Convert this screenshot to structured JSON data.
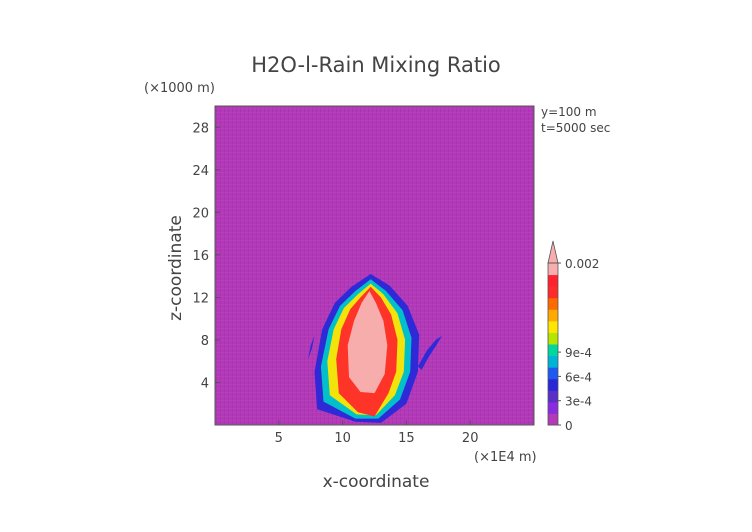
{
  "chart_data": {
    "type": "heatmap",
    "title": "H2O-l-Rain Mixing Ratio",
    "xlabel": "x-coordinate",
    "ylabel": "z-coordinate",
    "x_unit": "(×1E4 m)",
    "y_unit": "(×1000 m)",
    "annotations": [
      "y=100 m",
      "t=5000 sec"
    ],
    "x_ticks": [
      "5",
      "10",
      "15",
      "20"
    ],
    "y_ticks": [
      "4",
      "8",
      "12",
      "16",
      "20",
      "24",
      "28"
    ],
    "xlim": [
      0,
      25
    ],
    "ylim": [
      0,
      30
    ],
    "x_tick_values": [
      5,
      10,
      15,
      20
    ],
    "y_tick_values": [
      4,
      8,
      12,
      16,
      20,
      24,
      28
    ],
    "background_value": 0,
    "background_color": "#b23ab8",
    "colorbar": {
      "labels": [
        "0.002",
        "9e-4",
        "6e-4",
        "3e-4",
        "0"
      ],
      "label_values": [
        0.002,
        0.0009,
        0.0006,
        0.0003,
        0
      ],
      "vmax": 0.002,
      "colors": [
        "#b23ab8",
        "#8a2be2",
        "#5a2fc8",
        "#2828d8",
        "#1e5af0",
        "#00b4d8",
        "#00d7a0",
        "#b4e600",
        "#ffe600",
        "#ffaa00",
        "#ff6a00",
        "#ff2a2a",
        "#ff2030",
        "#f8aeae"
      ]
    },
    "cloud_shapes": [
      {
        "name": "outer",
        "color": "#2828d8",
        "outline": [
          [
            8.0,
            1.5
          ],
          [
            7.8,
            5.0
          ],
          [
            8.4,
            9.0
          ],
          [
            9.4,
            11.5
          ],
          [
            10.7,
            13.0
          ],
          [
            12.2,
            14.2
          ],
          [
            13.7,
            13.1
          ],
          [
            15.1,
            11.2
          ],
          [
            16.0,
            8.5
          ],
          [
            15.9,
            5.0
          ],
          [
            15.0,
            2.0
          ],
          [
            13.0,
            0.2
          ],
          [
            11.0,
            0.3
          ]
        ]
      },
      {
        "name": "cyan",
        "color": "#00c8c8",
        "outline": [
          [
            8.5,
            2.2
          ],
          [
            8.3,
            5.5
          ],
          [
            8.9,
            9.0
          ],
          [
            9.8,
            11.2
          ],
          [
            11.0,
            12.6
          ],
          [
            12.2,
            13.7
          ],
          [
            13.4,
            12.6
          ],
          [
            14.7,
            10.8
          ],
          [
            15.4,
            8.2
          ],
          [
            15.3,
            5.0
          ],
          [
            14.5,
            2.4
          ],
          [
            12.8,
            0.6
          ],
          [
            11.0,
            0.6
          ]
        ]
      },
      {
        "name": "yellow",
        "color": "#ffe600",
        "outline": [
          [
            9.0,
            2.8
          ],
          [
            8.8,
            6.0
          ],
          [
            9.3,
            9.0
          ],
          [
            10.1,
            11.0
          ],
          [
            11.2,
            12.3
          ],
          [
            12.2,
            13.3
          ],
          [
            13.2,
            12.3
          ],
          [
            14.3,
            10.5
          ],
          [
            14.9,
            8.0
          ],
          [
            14.8,
            5.0
          ],
          [
            14.1,
            2.8
          ],
          [
            12.6,
            0.9
          ],
          [
            11.1,
            1.0
          ]
        ]
      },
      {
        "name": "red",
        "color": "#ff2a2a",
        "outline": [
          [
            9.7,
            3.0
          ],
          [
            9.5,
            6.2
          ],
          [
            9.9,
            9.0
          ],
          [
            10.6,
            10.9
          ],
          [
            11.4,
            12.0
          ],
          [
            12.2,
            13.0
          ],
          [
            13.0,
            12.0
          ],
          [
            13.8,
            10.4
          ],
          [
            14.3,
            8.0
          ],
          [
            14.2,
            5.0
          ],
          [
            13.6,
            3.0
          ],
          [
            12.5,
            0.8
          ],
          [
            11.2,
            1.2
          ]
        ]
      },
      {
        "name": "core",
        "color": "#f8b4b4",
        "outline": [
          [
            10.5,
            4.5
          ],
          [
            10.4,
            7.5
          ],
          [
            10.9,
            9.8
          ],
          [
            11.5,
            11.5
          ],
          [
            12.1,
            12.6
          ],
          [
            12.6,
            11.5
          ],
          [
            13.2,
            9.8
          ],
          [
            13.5,
            7.5
          ],
          [
            13.3,
            4.8
          ],
          [
            12.5,
            3.0
          ],
          [
            11.4,
            3.1
          ]
        ]
      },
      {
        "name": "right-streak",
        "color": "#2828d8",
        "outline": [
          [
            15.9,
            5.5
          ],
          [
            16.6,
            7.0
          ],
          [
            17.3,
            8.0
          ],
          [
            17.8,
            8.4
          ],
          [
            17.4,
            7.6
          ],
          [
            16.7,
            6.3
          ],
          [
            16.2,
            5.2
          ]
        ]
      },
      {
        "name": "left-streak",
        "color": "#2828d8",
        "outline": [
          [
            7.3,
            6.2
          ],
          [
            7.5,
            7.5
          ],
          [
            7.8,
            8.4
          ],
          [
            7.6,
            7.2
          ]
        ]
      }
    ]
  }
}
